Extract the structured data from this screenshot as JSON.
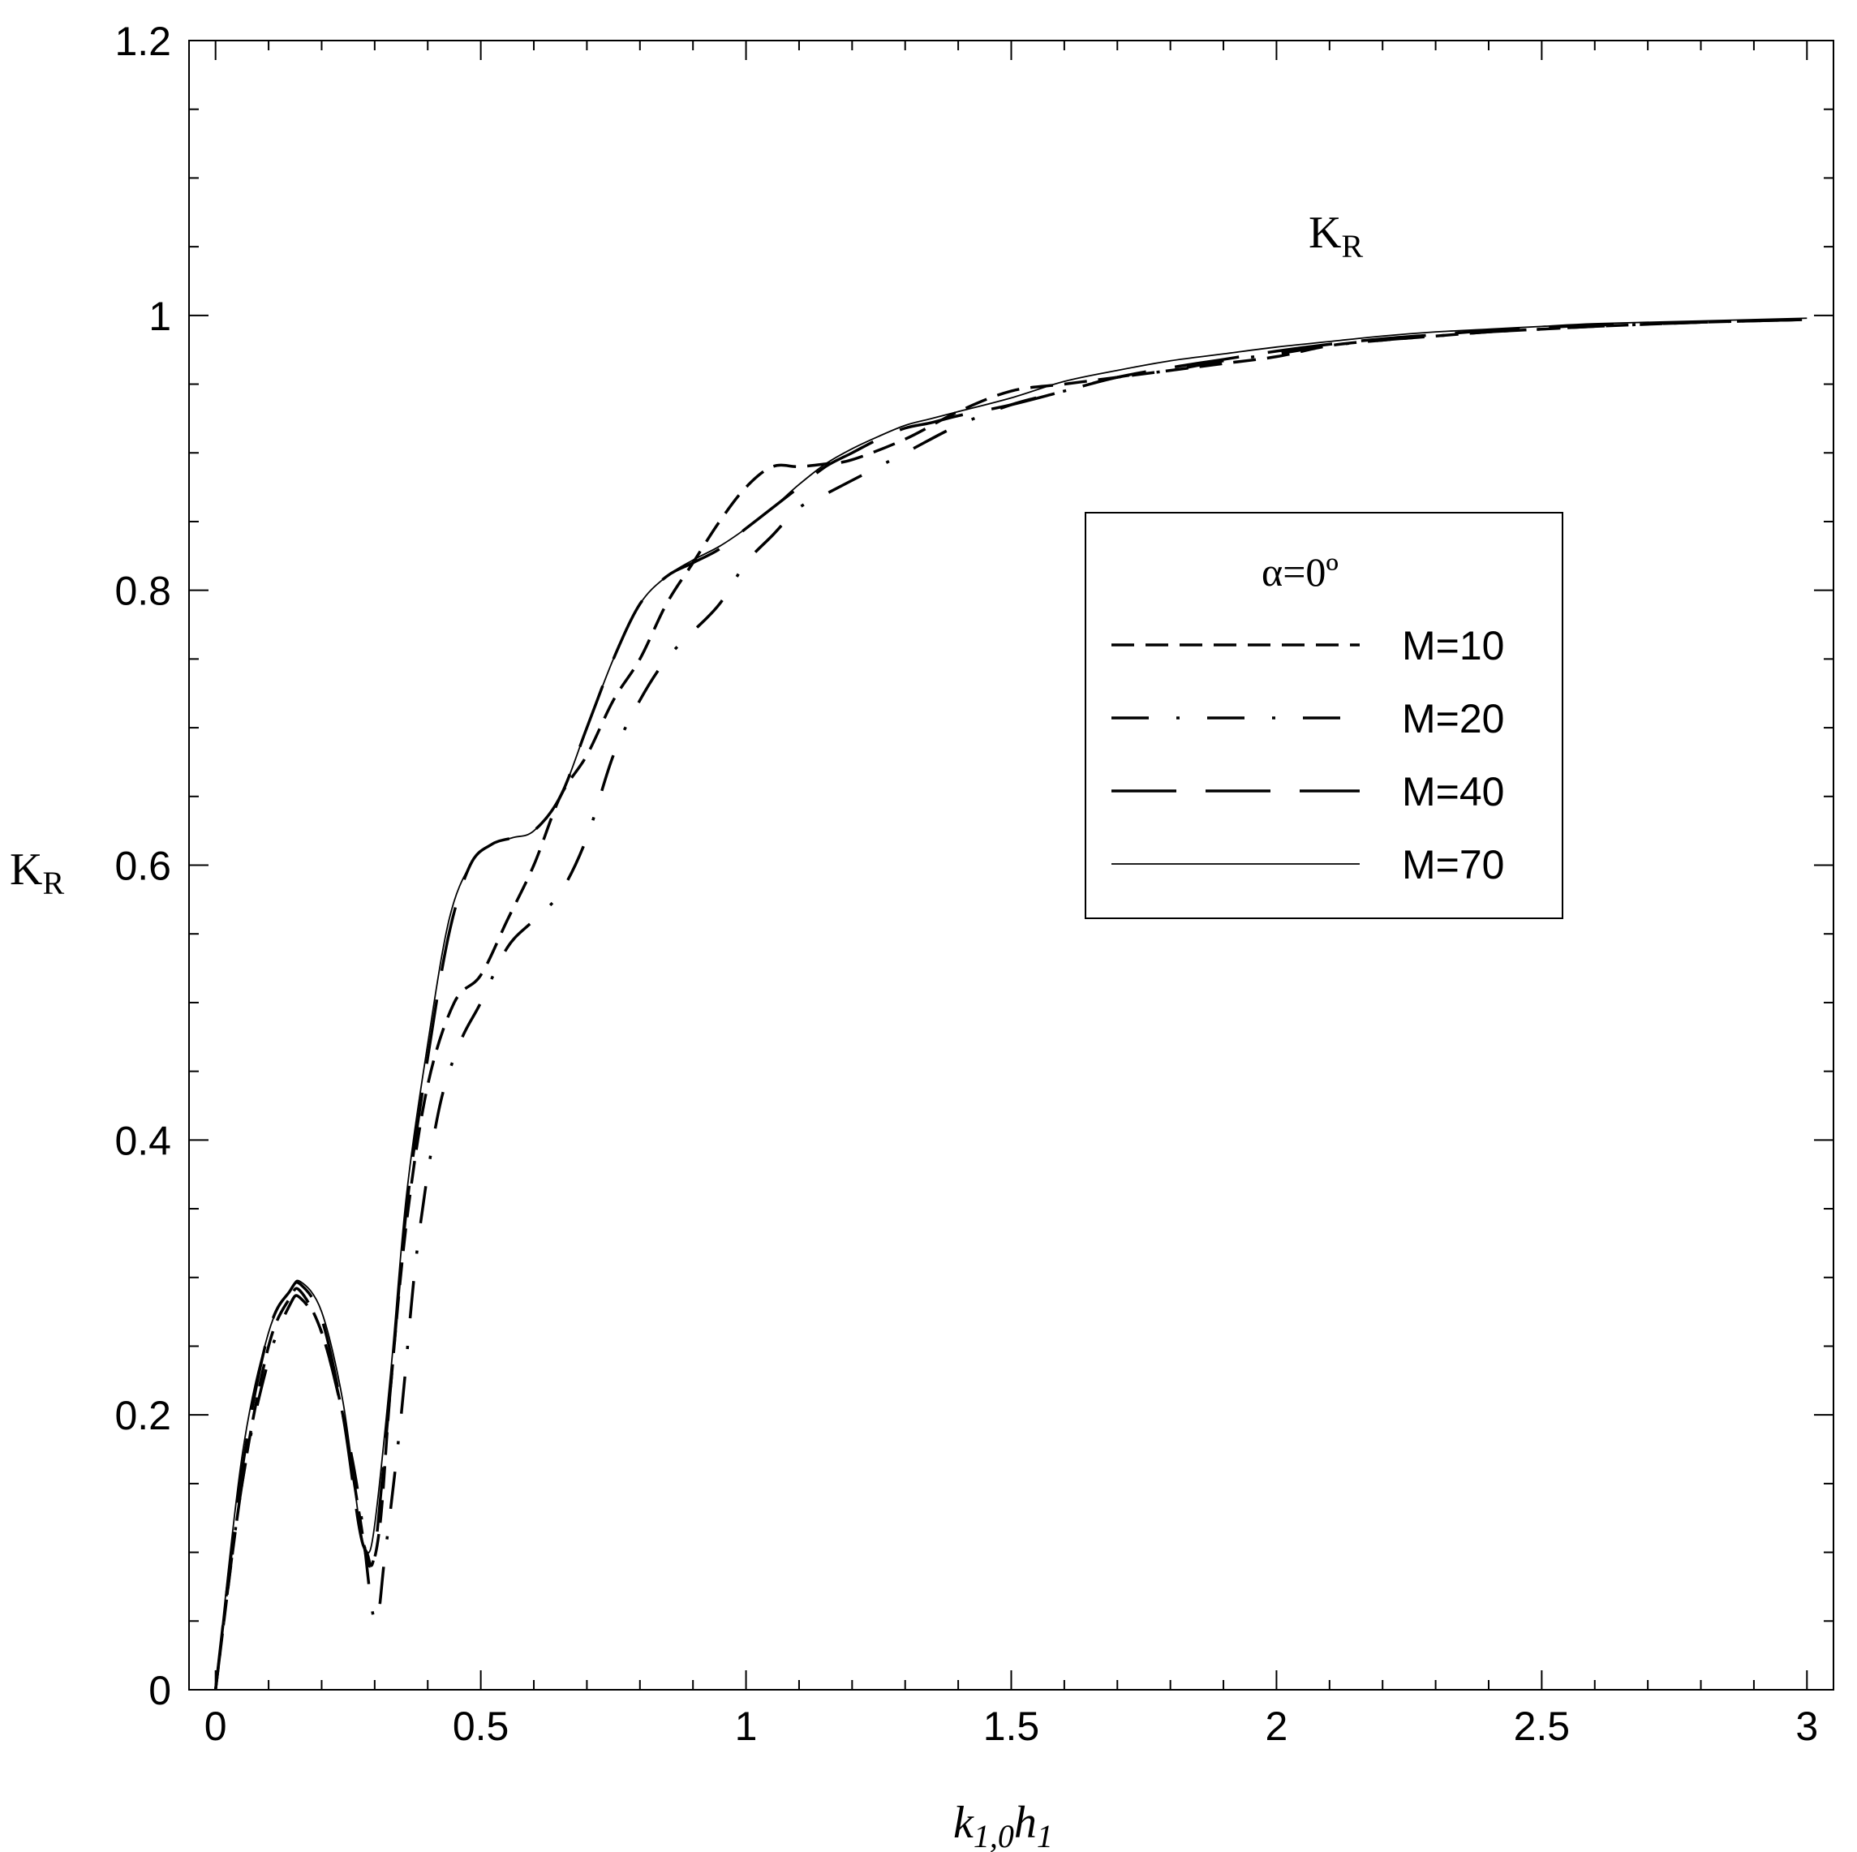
{
  "chart_data": {
    "type": "line",
    "title": "",
    "xlabel": {
      "main": "k",
      "sub": "1,0",
      "main2": "h",
      "sub2": "1"
    },
    "ylabel": {
      "main": "K",
      "sub": "R"
    },
    "annotation": {
      "main": "K",
      "sub": "R"
    },
    "xlim": [
      -0.05,
      3.05
    ],
    "ylim": [
      0,
      1.2
    ],
    "x_ticks": [
      0,
      0.5,
      1,
      1.5,
      2,
      2.5,
      3
    ],
    "x_tick_labels": [
      "0",
      "0.5",
      "1",
      "1.5",
      "2",
      "2.5",
      "3"
    ],
    "y_ticks": [
      0,
      0.2,
      0.4,
      0.6,
      0.8,
      1,
      1.2
    ],
    "y_tick_labels": [
      "0",
      "0.2",
      "0.4",
      "0.6",
      "0.8",
      "1",
      "1.2"
    ],
    "grid": false,
    "legend": {
      "title": "α=0º",
      "position": "center-right"
    },
    "series": [
      {
        "name": "M=10",
        "style": "dash",
        "x": [
          0.0,
          0.05,
          0.1,
          0.14,
          0.16,
          0.2,
          0.24,
          0.27,
          0.29,
          0.31,
          0.33,
          0.36,
          0.4,
          0.45,
          0.5,
          0.55,
          0.6,
          0.65,
          0.7,
          0.75,
          0.8,
          0.85,
          0.9,
          0.95,
          1.0,
          1.05,
          1.1,
          1.15,
          1.2,
          1.3,
          1.4,
          1.5,
          1.6,
          1.7,
          1.8,
          1.9,
          2.0,
          2.1,
          2.2,
          2.3,
          2.4,
          2.5,
          2.6,
          2.8,
          3.0
        ],
        "y": [
          0.0,
          0.15,
          0.25,
          0.285,
          0.29,
          0.26,
          0.2,
          0.13,
          0.09,
          0.12,
          0.22,
          0.34,
          0.44,
          0.5,
          0.52,
          0.56,
          0.6,
          0.65,
          0.68,
          0.72,
          0.75,
          0.79,
          0.82,
          0.85,
          0.875,
          0.89,
          0.89,
          0.892,
          0.895,
          0.91,
          0.93,
          0.945,
          0.95,
          0.955,
          0.96,
          0.965,
          0.97,
          0.978,
          0.982,
          0.985,
          0.988,
          0.99,
          0.992,
          0.995,
          0.997
        ]
      },
      {
        "name": "M=20",
        "style": "dash-dot",
        "x": [
          0.0,
          0.05,
          0.1,
          0.14,
          0.16,
          0.2,
          0.24,
          0.27,
          0.3,
          0.32,
          0.35,
          0.38,
          0.42,
          0.46,
          0.5,
          0.55,
          0.6,
          0.65,
          0.7,
          0.75,
          0.8,
          0.85,
          0.9,
          0.95,
          1.0,
          1.05,
          1.1,
          1.15,
          1.2,
          1.3,
          1.4,
          1.5,
          1.6,
          1.7,
          1.8,
          1.9,
          2.0,
          2.1,
          2.2,
          2.3,
          2.4,
          2.5,
          2.6,
          2.8,
          3.0
        ],
        "y": [
          0.0,
          0.15,
          0.24,
          0.28,
          0.285,
          0.26,
          0.2,
          0.14,
          0.05,
          0.1,
          0.2,
          0.32,
          0.42,
          0.47,
          0.5,
          0.54,
          0.56,
          0.58,
          0.62,
          0.68,
          0.72,
          0.75,
          0.77,
          0.79,
          0.82,
          0.84,
          0.86,
          0.87,
          0.88,
          0.9,
          0.92,
          0.935,
          0.945,
          0.955,
          0.96,
          0.967,
          0.972,
          0.978,
          0.982,
          0.985,
          0.988,
          0.99,
          0.992,
          0.995,
          0.997
        ]
      },
      {
        "name": "M=40",
        "style": "long-dash",
        "x": [
          0.0,
          0.05,
          0.1,
          0.14,
          0.16,
          0.2,
          0.24,
          0.27,
          0.285,
          0.3,
          0.33,
          0.36,
          0.4,
          0.44,
          0.48,
          0.52,
          0.56,
          0.6,
          0.65,
          0.7,
          0.75,
          0.8,
          0.85,
          0.9,
          0.95,
          1.0,
          1.05,
          1.1,
          1.15,
          1.2,
          1.25,
          1.3,
          1.35,
          1.4,
          1.5,
          1.6,
          1.7,
          1.8,
          1.9,
          2.0,
          2.1,
          2.2,
          2.3,
          2.4,
          2.5,
          2.6,
          2.8,
          3.0
        ],
        "y": [
          0.0,
          0.16,
          0.26,
          0.29,
          0.295,
          0.27,
          0.2,
          0.12,
          0.1,
          0.1,
          0.22,
          0.35,
          0.46,
          0.55,
          0.6,
          0.615,
          0.62,
          0.625,
          0.65,
          0.7,
          0.75,
          0.79,
          0.81,
          0.82,
          0.83,
          0.845,
          0.86,
          0.875,
          0.89,
          0.9,
          0.91,
          0.918,
          0.922,
          0.927,
          0.935,
          0.945,
          0.955,
          0.962,
          0.968,
          0.974,
          0.979,
          0.983,
          0.986,
          0.989,
          0.991,
          0.993,
          0.995,
          0.997
        ]
      },
      {
        "name": "M=70",
        "style": "solid-thin",
        "x": [
          0.0,
          0.05,
          0.1,
          0.14,
          0.16,
          0.2,
          0.24,
          0.27,
          0.285,
          0.3,
          0.33,
          0.36,
          0.4,
          0.44,
          0.48,
          0.52,
          0.56,
          0.6,
          0.65,
          0.7,
          0.75,
          0.8,
          0.85,
          0.9,
          0.95,
          1.0,
          1.05,
          1.1,
          1.15,
          1.2,
          1.25,
          1.3,
          1.35,
          1.4,
          1.5,
          1.6,
          1.7,
          1.8,
          1.9,
          2.0,
          2.1,
          2.2,
          2.3,
          2.4,
          2.5,
          2.6,
          2.8,
          3.0
        ],
        "y": [
          0.0,
          0.17,
          0.26,
          0.29,
          0.297,
          0.275,
          0.21,
          0.125,
          0.1,
          0.12,
          0.23,
          0.36,
          0.47,
          0.56,
          0.6,
          0.615,
          0.62,
          0.625,
          0.65,
          0.7,
          0.75,
          0.79,
          0.81,
          0.822,
          0.832,
          0.845,
          0.86,
          0.877,
          0.892,
          0.903,
          0.912,
          0.92,
          0.925,
          0.93,
          0.94,
          0.952,
          0.96,
          0.967,
          0.972,
          0.977,
          0.981,
          0.985,
          0.988,
          0.99,
          0.992,
          0.994,
          0.996,
          0.998
        ]
      }
    ]
  }
}
